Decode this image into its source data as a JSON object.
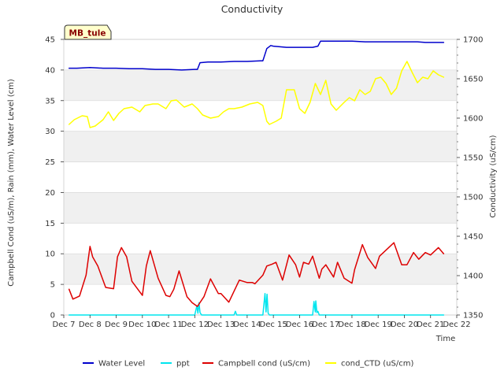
{
  "chart_data": {
    "type": "line",
    "title": "Conductivity",
    "badge": "MB_tule",
    "xlabel": "Time",
    "ylabel_left": "Campbell Cond (uS/m), Rain (mm), Water Level (cm)",
    "ylabel_right": "Conductivity (uS/cm)",
    "xlim": [
      7,
      22
    ],
    "ylim_left": [
      0,
      45
    ],
    "ylim_right": [
      1350,
      1700
    ],
    "xticks": [
      {
        "v": 7,
        "label": "Dec 7"
      },
      {
        "v": 8,
        "label": "Dec 8"
      },
      {
        "v": 9,
        "label": "Dec 9"
      },
      {
        "v": 10,
        "label": "Dec 10"
      },
      {
        "v": 11,
        "label": "Dec 11"
      },
      {
        "v": 12,
        "label": "Dec 12"
      },
      {
        "v": 13,
        "label": "Dec 13"
      },
      {
        "v": 14,
        "label": "Dec 14"
      },
      {
        "v": 15,
        "label": "Dec 15"
      },
      {
        "v": 16,
        "label": "Dec 16"
      },
      {
        "v": 17,
        "label": "Dec 17"
      },
      {
        "v": 18,
        "label": "Dec 18"
      },
      {
        "v": 19,
        "label": "Dec 19"
      },
      {
        "v": 20,
        "label": "Dec 20"
      },
      {
        "v": 21,
        "label": "Dec 21"
      },
      {
        "v": 22,
        "label": "Dec 22"
      }
    ],
    "yticks_left": [
      0,
      5,
      10,
      15,
      20,
      25,
      30,
      35,
      40,
      45
    ],
    "yticks_right": [
      1350,
      1400,
      1450,
      1500,
      1550,
      1600,
      1650,
      1700
    ],
    "series": [
      {
        "name": "Water Level",
        "color": "#0000cc",
        "axis": "left",
        "x": [
          7.2,
          7.5,
          8.0,
          8.5,
          9.0,
          9.5,
          10.0,
          10.5,
          11.0,
          11.5,
          12.0,
          12.1,
          12.2,
          12.5,
          13.0,
          13.5,
          14.0,
          14.5,
          14.6,
          14.75,
          14.9,
          15.0,
          15.5,
          16.0,
          16.5,
          16.7,
          16.8,
          17.0,
          17.5,
          18.0,
          18.5,
          19.0,
          19.5,
          20.0,
          20.5,
          20.8,
          21.0,
          21.5
        ],
        "values": [
          40.3,
          40.3,
          40.4,
          40.3,
          40.3,
          40.2,
          40.2,
          40.1,
          40.1,
          40.0,
          40.1,
          40.1,
          41.2,
          41.3,
          41.3,
          41.4,
          41.4,
          41.5,
          41.5,
          43.5,
          44.0,
          43.9,
          43.7,
          43.7,
          43.7,
          43.9,
          44.7,
          44.7,
          44.7,
          44.7,
          44.6,
          44.6,
          44.6,
          44.6,
          44.6,
          44.5,
          44.5,
          44.5
        ]
      },
      {
        "name": "ppt",
        "color": "#00e5ee",
        "axis": "left",
        "x": [
          7.2,
          12.0,
          12.08,
          12.12,
          12.16,
          12.2,
          12.26,
          12.3,
          13.5,
          13.55,
          13.6,
          13.65,
          13.8,
          14.6,
          14.68,
          14.72,
          14.76,
          14.8,
          14.85,
          14.9,
          16.5,
          16.55,
          16.6,
          16.62,
          16.66,
          16.7,
          16.75,
          16.8,
          21.5
        ],
        "values": [
          0.0,
          0.0,
          1.5,
          0.3,
          2.0,
          0.4,
          0.0,
          0.0,
          0.0,
          0.6,
          0.0,
          0.0,
          0.0,
          0.0,
          3.5,
          0.5,
          3.4,
          0.3,
          0.0,
          0.0,
          0.0,
          2.2,
          0.5,
          2.3,
          0.4,
          0.6,
          0.0,
          0.0,
          0.0
        ]
      },
      {
        "name": "Campbell cond (uS/cm)",
        "color": "#dd0000",
        "axis": "left",
        "x": [
          7.2,
          7.35,
          7.6,
          7.85,
          8.0,
          8.1,
          8.3,
          8.6,
          8.9,
          9.05,
          9.2,
          9.4,
          9.6,
          10.0,
          10.15,
          10.3,
          10.6,
          10.9,
          11.05,
          11.2,
          11.4,
          11.7,
          11.9,
          12.1,
          12.35,
          12.6,
          12.9,
          13.0,
          13.3,
          13.7,
          14.0,
          14.2,
          14.3,
          14.6,
          14.75,
          14.95,
          15.1,
          15.35,
          15.6,
          15.85,
          16.0,
          16.15,
          16.35,
          16.5,
          16.75,
          16.85,
          17.0,
          17.3,
          17.45,
          17.7,
          18.0,
          18.1,
          18.4,
          18.6,
          18.9,
          19.05,
          19.2,
          19.6,
          19.9,
          20.1,
          20.35,
          20.55,
          20.8,
          21.0,
          21.3,
          21.5
        ],
        "values": [
          4.2,
          2.6,
          3.1,
          6.5,
          11.2,
          9.5,
          8.0,
          4.5,
          4.3,
          9.5,
          11.0,
          9.5,
          5.5,
          3.2,
          8.0,
          10.5,
          6.0,
          3.2,
          3.0,
          4.2,
          7.2,
          3.0,
          2.0,
          1.4,
          3.0,
          5.9,
          3.5,
          3.5,
          2.1,
          5.7,
          5.3,
          5.3,
          5.1,
          6.5,
          8.0,
          8.3,
          8.6,
          5.7,
          9.8,
          8.2,
          6.2,
          8.6,
          8.3,
          9.6,
          6.0,
          7.5,
          8.2,
          6.2,
          8.6,
          6.0,
          5.2,
          7.4,
          11.5,
          9.4,
          7.6,
          9.6,
          10.2,
          11.8,
          8.2,
          8.2,
          10.2,
          9.1,
          10.2,
          9.8,
          11.0,
          10.0
        ]
      },
      {
        "name": "cond_CTD (uS/cm)",
        "color": "#ffff00",
        "axis": "right",
        "x": [
          7.2,
          7.4,
          7.7,
          7.9,
          8.0,
          8.2,
          8.5,
          8.7,
          8.9,
          9.1,
          9.3,
          9.6,
          9.9,
          10.1,
          10.4,
          10.6,
          10.9,
          11.1,
          11.3,
          11.6,
          11.9,
          12.1,
          12.3,
          12.6,
          12.9,
          13.1,
          13.3,
          13.5,
          13.8,
          14.1,
          14.4,
          14.6,
          14.75,
          14.85,
          15.1,
          15.3,
          15.5,
          15.8,
          16.0,
          16.2,
          16.4,
          16.6,
          16.8,
          17.0,
          17.2,
          17.4,
          17.7,
          17.9,
          18.1,
          18.3,
          18.5,
          18.7,
          18.9,
          19.1,
          19.3,
          19.5,
          19.7,
          19.9,
          20.1,
          20.3,
          20.5,
          20.7,
          20.9,
          21.1,
          21.3,
          21.5
        ],
        "values": [
          1592,
          1598,
          1603,
          1602,
          1588,
          1590,
          1598,
          1608,
          1597,
          1606,
          1612,
          1614,
          1608,
          1616,
          1618,
          1618,
          1612,
          1622,
          1623,
          1614,
          1618,
          1612,
          1604,
          1600,
          1602,
          1608,
          1612,
          1612,
          1614,
          1618,
          1620,
          1616,
          1596,
          1592,
          1596,
          1600,
          1636,
          1636,
          1612,
          1606,
          1620,
          1644,
          1630,
          1648,
          1618,
          1610,
          1620,
          1626,
          1622,
          1636,
          1630,
          1634,
          1650,
          1652,
          1644,
          1630,
          1638,
          1660,
          1672,
          1658,
          1645,
          1652,
          1650,
          1660,
          1655,
          1652
        ]
      }
    ],
    "legend": [
      "Water Level",
      "ppt",
      "Campbell cond (uS/cm)",
      "cond_CTD (uS/cm)"
    ],
    "legend_position": "bottom"
  }
}
